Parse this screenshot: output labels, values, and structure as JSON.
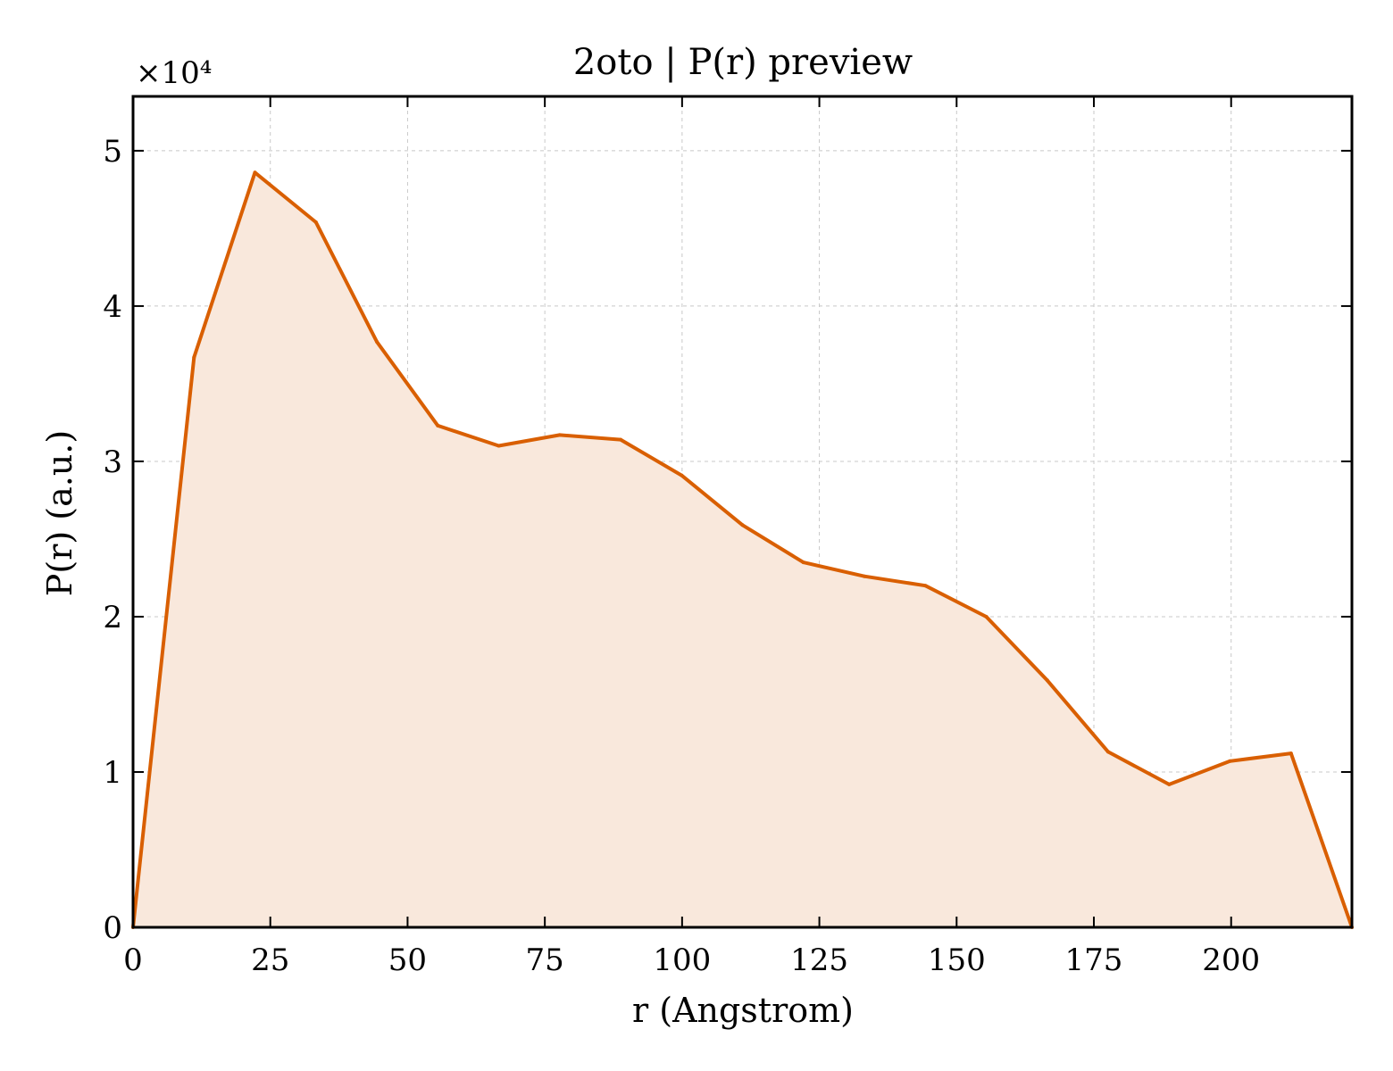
{
  "chart_data": {
    "type": "area",
    "title": "2oto | P(r) preview",
    "xlabel": "r (Angstrom)",
    "ylabel": "P(r) (a.u.)",
    "y_multiplier_label": "×10⁴",
    "xlim": [
      0,
      222
    ],
    "ylim": [
      0,
      5.35
    ],
    "x_ticks": [
      0,
      25,
      50,
      75,
      100,
      125,
      150,
      175,
      200
    ],
    "y_ticks": [
      0,
      1,
      2,
      3,
      4,
      5
    ],
    "grid": true,
    "colors": {
      "line": "#d95f02",
      "fill": "#f9e8dc"
    },
    "series": [
      {
        "x": [
          0,
          11.1,
          22.2,
          33.3,
          44.4,
          55.5,
          66.6,
          77.7,
          88.8,
          99.9,
          111,
          122.1,
          133.2,
          144.3,
          155.4,
          166.5,
          177.6,
          188.7,
          199.8,
          210.9,
          222
        ],
        "values": [
          0,
          3.67,
          4.86,
          4.54,
          3.77,
          3.23,
          3.1,
          3.17,
          3.14,
          2.91,
          2.59,
          2.35,
          2.26,
          2.2,
          2.0,
          1.59,
          1.13,
          0.92,
          1.07,
          1.12,
          0
        ]
      }
    ]
  }
}
